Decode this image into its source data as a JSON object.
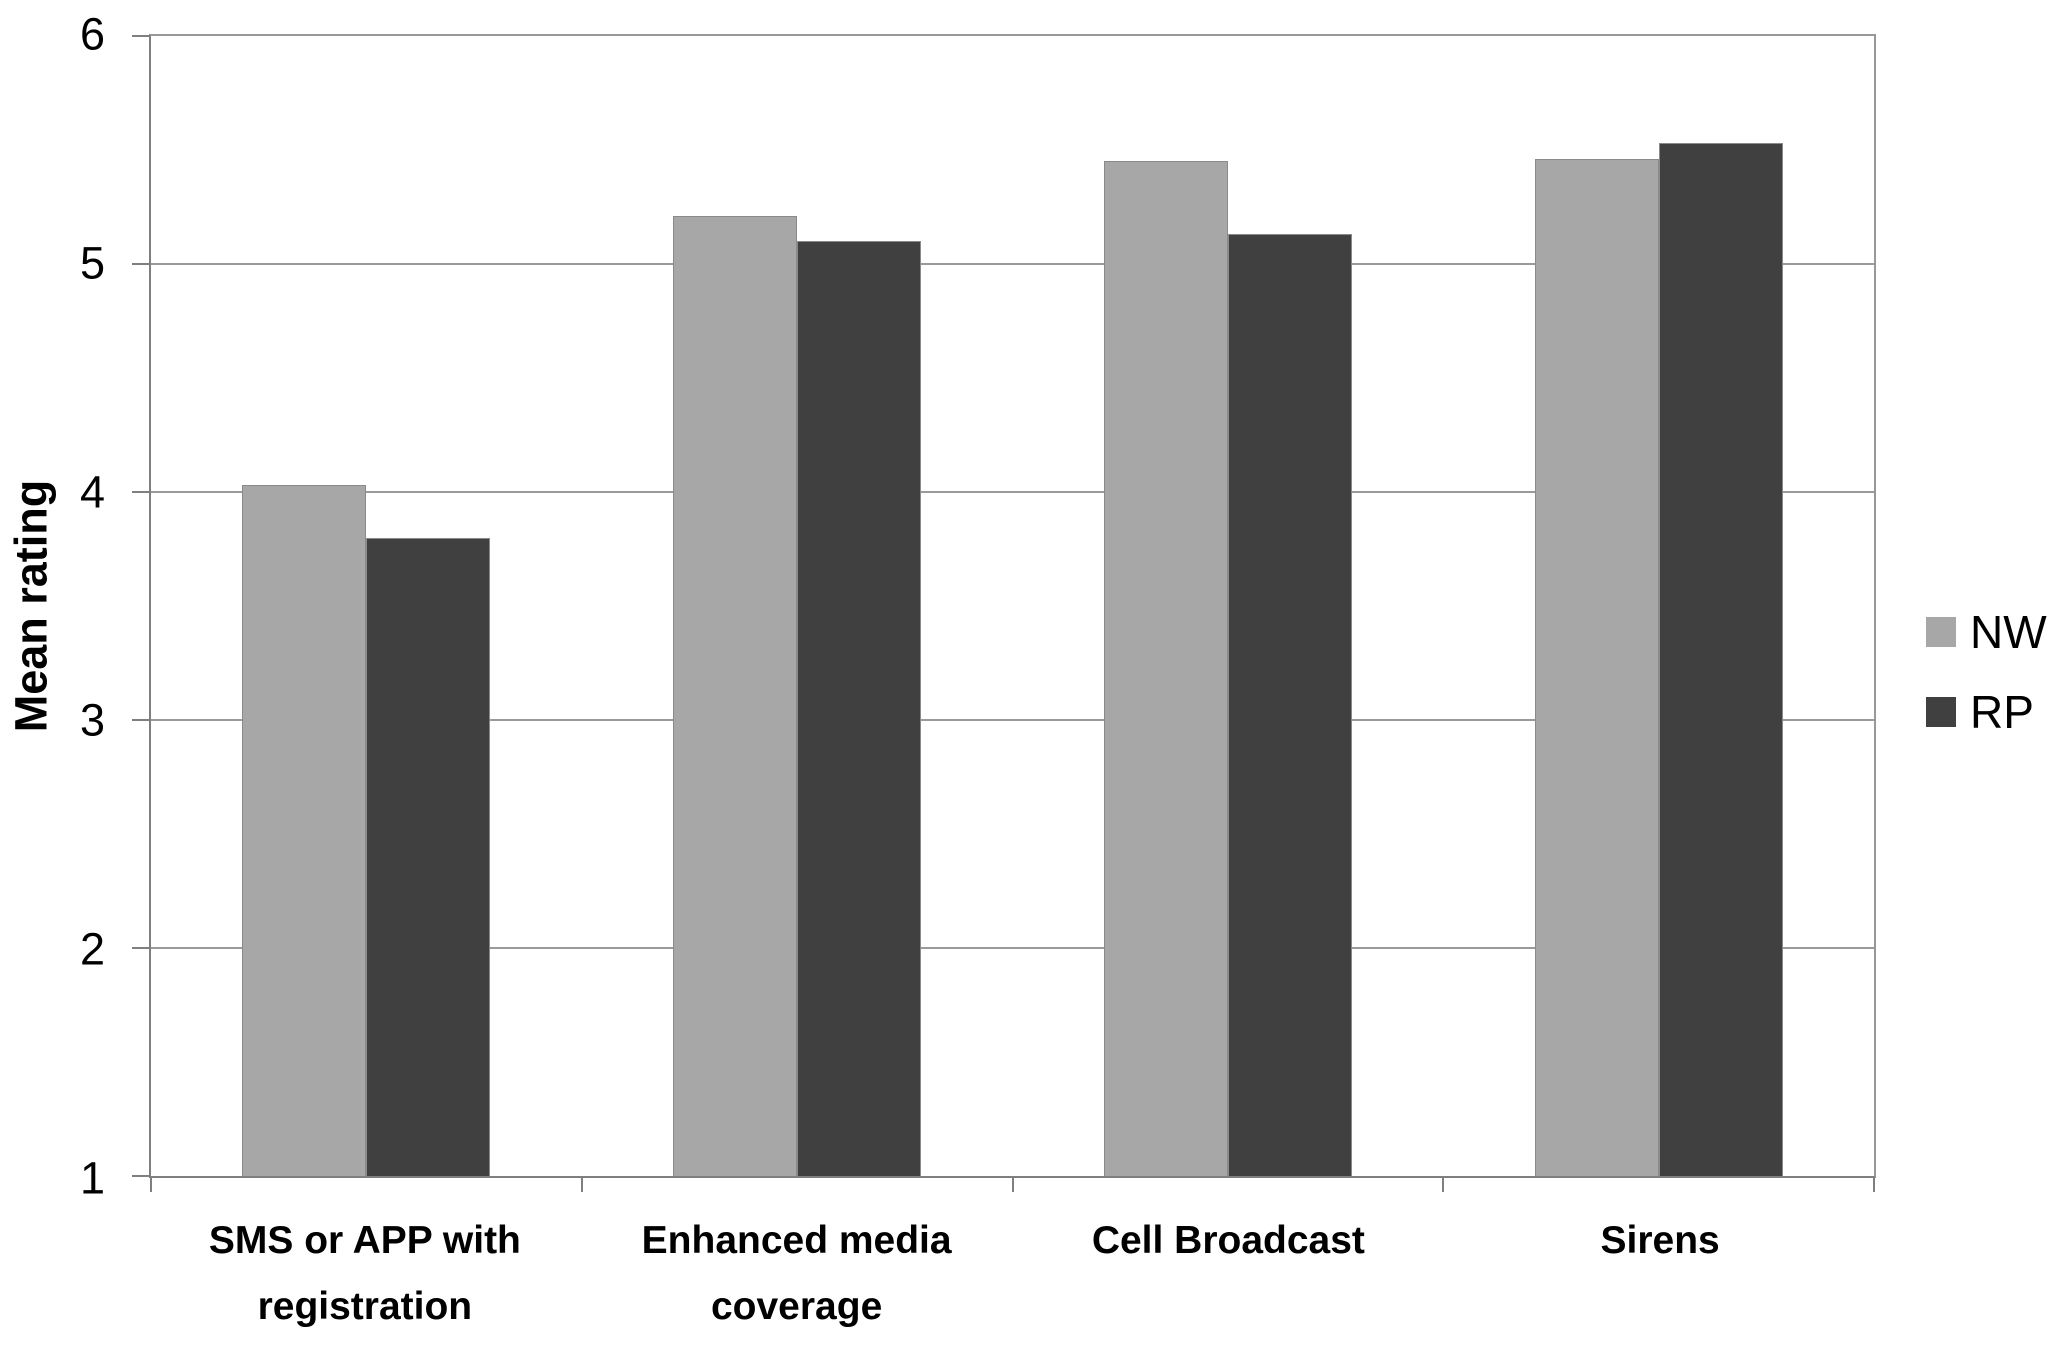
{
  "chart_data": {
    "type": "bar",
    "title": "",
    "categories": [
      "SMS or APP with registration",
      "Enhanced media coverage",
      "Cell Broadcast",
      "Sirens"
    ],
    "series": [
      {
        "name": "NW",
        "color": "#a7a7a7",
        "values": [
          4.03,
          5.21,
          5.45,
          5.46
        ]
      },
      {
        "name": "RP",
        "color": "#404040",
        "values": [
          3.8,
          5.1,
          5.13,
          5.53
        ]
      }
    ],
    "xlabel": "",
    "ylabel": "Mean rating",
    "ylim": [
      1,
      6
    ],
    "yticks": [
      1,
      2,
      3,
      4,
      5,
      6
    ],
    "grid": true,
    "legend_position": "right",
    "colors": {
      "gridline": "#9a9a9a",
      "axis": "#7f7f7f",
      "bar_border": "#8a8a8a",
      "text": "#000000",
      "background": "#ffffff"
    }
  }
}
